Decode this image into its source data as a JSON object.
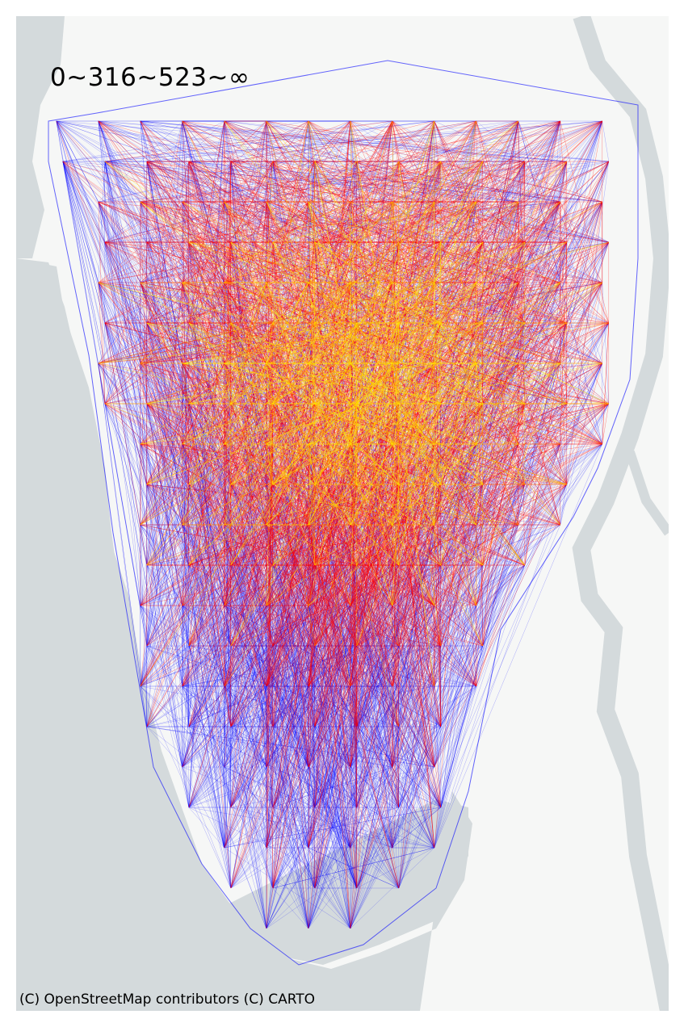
{
  "map": {
    "legend_text": "0~316~523~∞",
    "attribution": "(C) OpenStreetMap contributors (C) CARTO",
    "basemap": "CARTO light (Positron)",
    "flow_colors": {
      "low": "#0000ff",
      "mid": "#ff0000",
      "high": "#ffe000"
    },
    "flow_classes": [
      "0~316",
      "316~523",
      "523~∞"
    ],
    "water_color": "#d4dadc",
    "land_color": "#f6f7f6"
  }
}
